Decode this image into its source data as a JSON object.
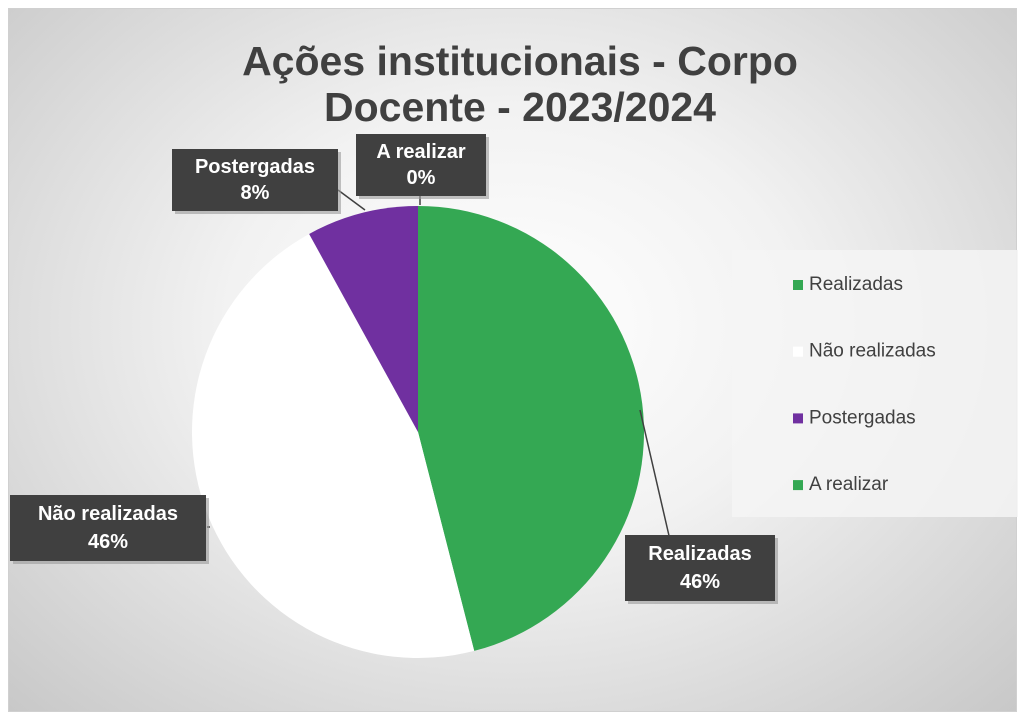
{
  "chart_data": {
    "type": "pie",
    "title": "Ações institucionais - Corpo Docente - 2023/2024",
    "categories": [
      "Realizadas",
      "Não realizadas",
      "Postergadas",
      "A realizar"
    ],
    "values": [
      46,
      46,
      8,
      0
    ],
    "value_labels": [
      "46%",
      "46%",
      "8%",
      "0%"
    ],
    "colors": [
      "#34a853",
      "#ffffff",
      "#7030a0",
      "#34a853"
    ],
    "legend": "right"
  }
}
